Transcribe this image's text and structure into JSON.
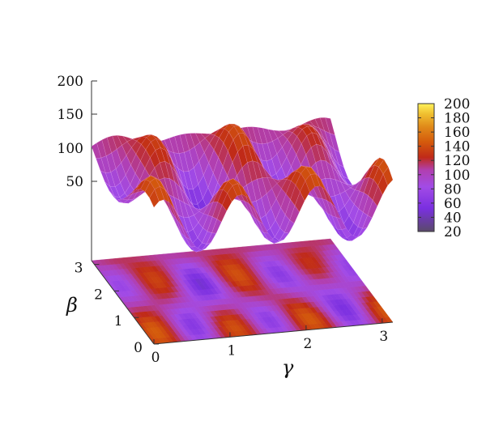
{
  "chart_data": {
    "type": "surface",
    "title": "",
    "xlabel": "γ",
    "ylabel": "β",
    "zlabel": "",
    "x_ticks": [
      "0",
      "1",
      "2",
      "3"
    ],
    "y_ticks": [
      "0",
      "1",
      "2",
      "3"
    ],
    "z_ticks": [
      "50",
      "100",
      "150",
      "200"
    ],
    "xlim": [
      0,
      3.14
    ],
    "ylim": [
      0,
      3.14
    ],
    "zlim": [
      0,
      200
    ],
    "colorbar": {
      "ticks": [
        "20",
        "40",
        "60",
        "80",
        "100",
        "120",
        "140",
        "160",
        "180",
        "200"
      ],
      "range": [
        20,
        200
      ],
      "palette": [
        "#5a4a6a",
        "#7a2fe0",
        "#a24be6",
        "#b13fb0",
        "#c02a18",
        "#d45a0c",
        "#e08a1a",
        "#f0c030",
        "#fff25a"
      ]
    },
    "projection_map": "heatmap on base plane",
    "surface_note": "periodic ridges along γ (~period 1), mostly constant along β; values ~30–150"
  }
}
